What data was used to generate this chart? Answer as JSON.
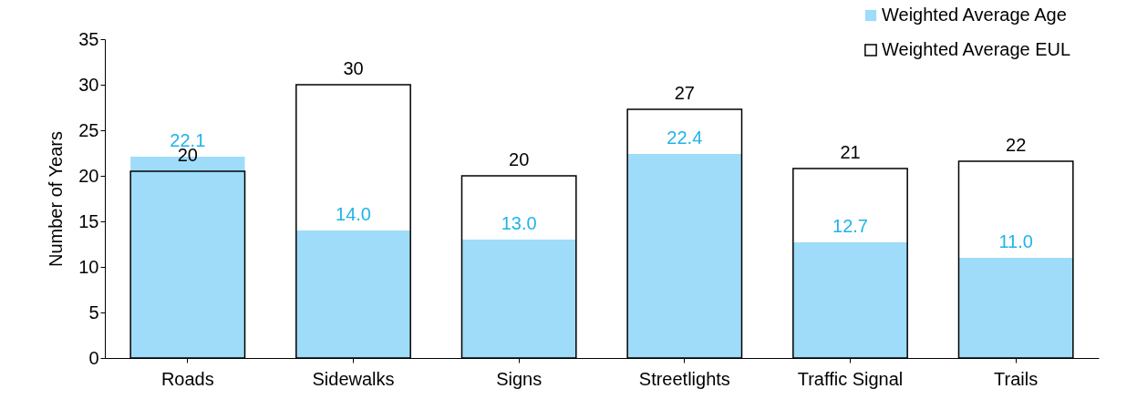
{
  "chart_data": {
    "type": "bar",
    "ylabel": "Number of Years",
    "categories": [
      "Roads",
      "Sidewalks",
      "Signs",
      "Streetlights",
      "Traffic Signal",
      "Trails"
    ],
    "series": [
      {
        "name": "Weighted Average Age",
        "color": "#9edcf9",
        "values": [
          22.1,
          14.0,
          13.0,
          22.4,
          12.7,
          11.0
        ],
        "value_labels": [
          "22.1",
          "14.0",
          "13.0",
          "22.4",
          "12.7",
          "11.0"
        ]
      },
      {
        "name": "Weighted Average EUL",
        "color": "#000000",
        "values": [
          20.5,
          30,
          20,
          27.3,
          20.8,
          21.6
        ],
        "value_labels": [
          "20",
          "30",
          "20",
          "27",
          "21",
          "22"
        ]
      }
    ],
    "ylim": [
      0,
      35
    ],
    "yticks": [
      0,
      5,
      10,
      15,
      20,
      25,
      30,
      35
    ],
    "grid": false,
    "legend": "top right"
  }
}
